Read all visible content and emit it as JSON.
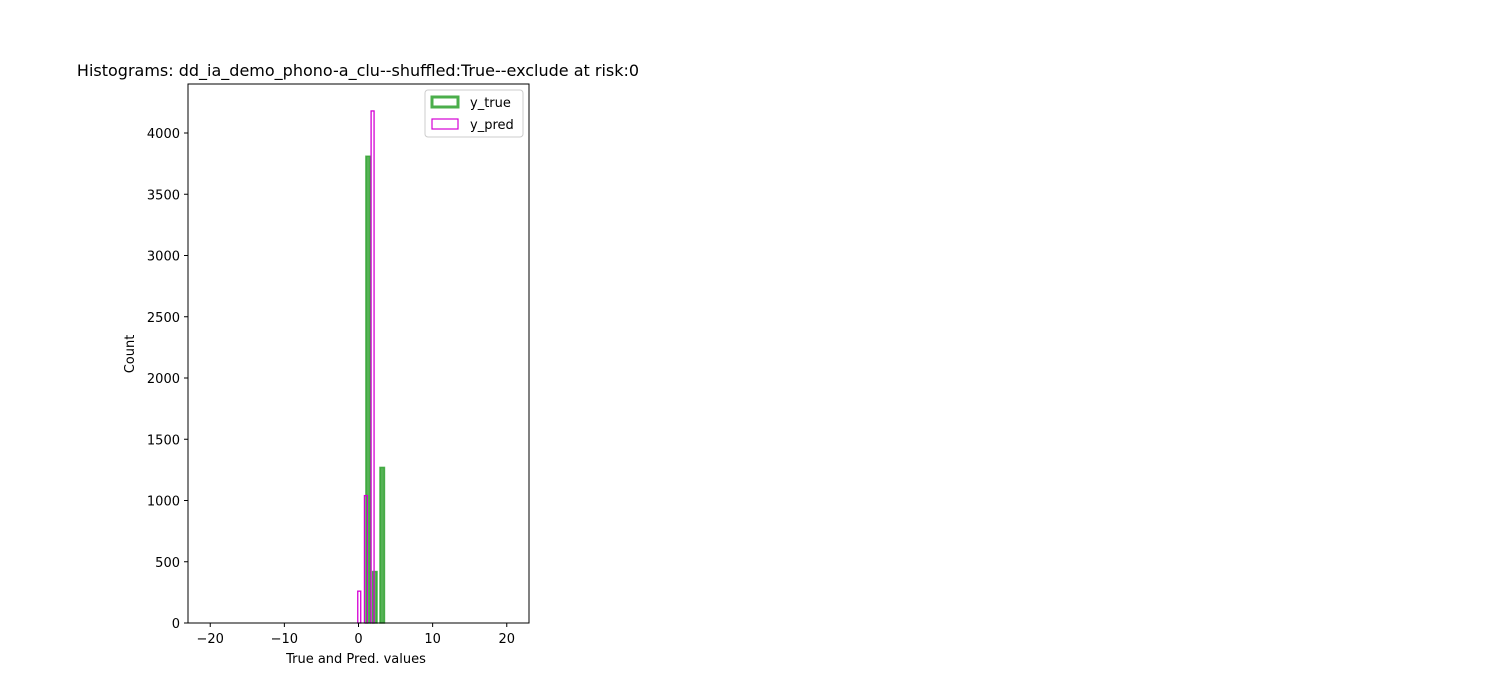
{
  "chart_data": {
    "type": "histogram",
    "title": "Histograms: dd_ia_demo_phono-a_clu--shuffled:True--exclude at risk:0",
    "xlabel": "True and Pred. values",
    "ylabel": "Count",
    "xlim": [
      -23,
      23
    ],
    "ylim": [
      0,
      4400
    ],
    "xticks": [
      -20,
      -10,
      0,
      10,
      20
    ],
    "yticks": [
      0,
      500,
      1000,
      1500,
      2000,
      2500,
      3000,
      3500,
      4000
    ],
    "grid": false,
    "legend_position": "top-right",
    "series": [
      {
        "name": "y_true",
        "color": "#2ca02c",
        "style": "filled-outline-thick",
        "bins": [
          {
            "x0": -4,
            "x1": -3,
            "count": 0
          },
          {
            "x0": 1,
            "x1": 1.6,
            "count": 3810
          },
          {
            "x0": 1.9,
            "x1": 2.5,
            "count": 420
          },
          {
            "x0": 2.9,
            "x1": 3.5,
            "count": 1270
          },
          {
            "x0": 7,
            "x1": 8,
            "count": 0
          }
        ]
      },
      {
        "name": "y_pred",
        "color": "#d400d4",
        "style": "outline",
        "bins": [
          {
            "x0": -0.1,
            "x1": 0.3,
            "count": 260
          },
          {
            "x0": 0.8,
            "x1": 1.2,
            "count": 1040
          },
          {
            "x0": 1.7,
            "x1": 2.1,
            "count": 4180
          }
        ]
      }
    ]
  }
}
